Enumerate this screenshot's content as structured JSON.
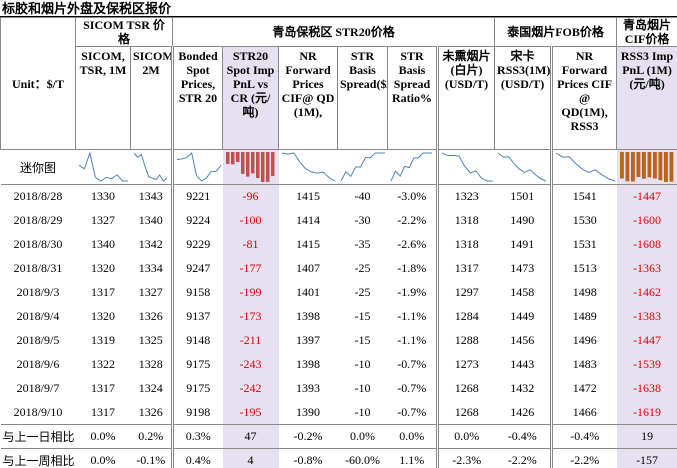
{
  "title": "标胶和烟片外盘及保税区报价",
  "table": {
    "groups": [
      "SICOM TSR 价格",
      "青岛保税区 STR20价格",
      "泰国烟片FOB价格",
      "青岛烟片CIF价格"
    ],
    "columns": [
      "Unit：$/T",
      "SICOM, TSR, 1M",
      "SICOM,TSR, 2M",
      "Bonded Spot Prices, STR 20",
      "STR20 Spot Imp PnL vs CR (元/吨)",
      "NR Forward Prices CIF@ QD (1M),",
      "STR Basis Spread($/T)",
      "STR Basis Spread Ratio%",
      "未熏烟片(白片)(USD/T)",
      "宋卡RSS3(1M)(USD/T)",
      "NR Forward Prices CIF @ QD(1M), RSS3",
      "RSS3 Imp PnL (1M)(元/吨)"
    ],
    "sparkline_label": "迷你图",
    "rows": [
      [
        "2018/8/28",
        "1330",
        "1343",
        "9221",
        "-96",
        "1415",
        "-40",
        "-3.0%",
        "1323",
        "1501",
        "1541",
        "-1447"
      ],
      [
        "2018/8/29",
        "1327",
        "1340",
        "9224",
        "-100",
        "1414",
        "-30",
        "-2.2%",
        "1318",
        "1490",
        "1530",
        "-1600"
      ],
      [
        "2018/8/30",
        "1340",
        "1342",
        "9229",
        "-81",
        "1415",
        "-35",
        "-2.6%",
        "1318",
        "1491",
        "1531",
        "-1608"
      ],
      [
        "2018/8/31",
        "1320",
        "1334",
        "9247",
        "-177",
        "1407",
        "-25",
        "-1.8%",
        "1317",
        "1473",
        "1513",
        "-1363"
      ],
      [
        "2018/9/3",
        "1317",
        "1327",
        "9158",
        "-199",
        "1401",
        "-25",
        "-1.9%",
        "1297",
        "1458",
        "1498",
        "-1462"
      ],
      [
        "2018/9/4",
        "1320",
        "1326",
        "9137",
        "-173",
        "1398",
        "-15",
        "-1.1%",
        "1284",
        "1449",
        "1489",
        "-1383"
      ],
      [
        "2018/9/5",
        "1319",
        "1325",
        "9148",
        "-211",
        "1397",
        "-15",
        "-1.1%",
        "1288",
        "1456",
        "1496",
        "-1447"
      ],
      [
        "2018/9/6",
        "1322",
        "1328",
        "9175",
        "-243",
        "1398",
        "-10",
        "-0.7%",
        "1273",
        "1443",
        "1483",
        "-1539"
      ],
      [
        "2018/9/7",
        "1317",
        "1324",
        "9175",
        "-242",
        "1393",
        "-10",
        "-0.7%",
        "1268",
        "1432",
        "1472",
        "-1638"
      ],
      [
        "2018/9/10",
        "1317",
        "1326",
        "9198",
        "-195",
        "1390",
        "-10",
        "-0.7%",
        "1268",
        "1426",
        "1466",
        "-1619"
      ]
    ],
    "summary_rows": [
      [
        "与上一日相比",
        "0.0%",
        "0.2%",
        "0.3%",
        "47",
        "-0.2%",
        "0.0%",
        "0.0%",
        "0.0%",
        "-0.4%",
        "-0.4%",
        "19"
      ],
      [
        "与上一周相比",
        "0.0%",
        "-0.1%",
        "0.4%",
        "4",
        "-0.8%",
        "-60.0%",
        "1.1%",
        "-2.3%",
        "-2.2%",
        "-2.2%",
        "-157"
      ]
    ]
  }
}
